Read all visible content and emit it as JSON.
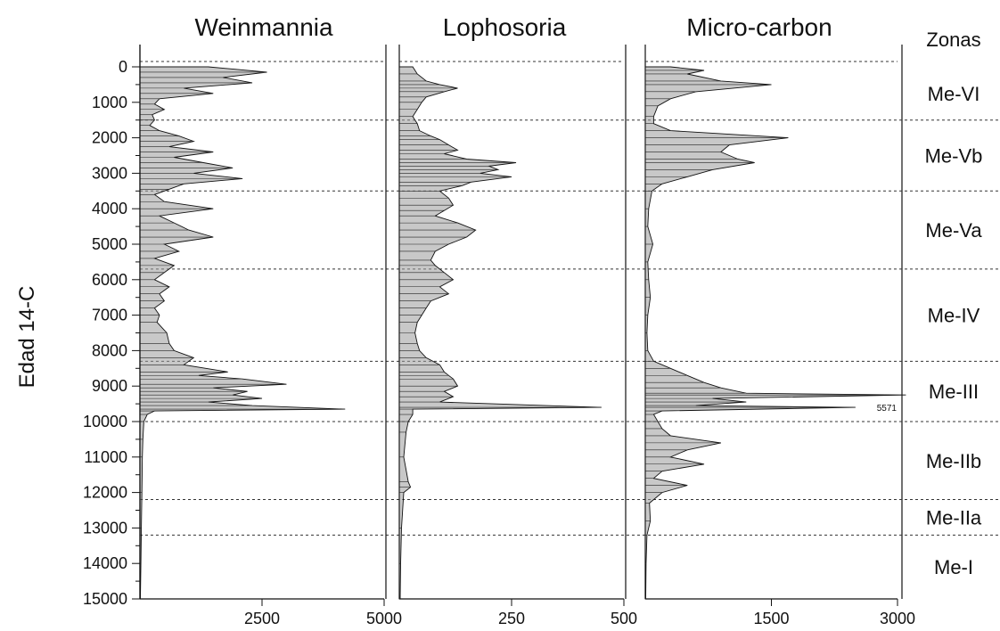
{
  "chart_data": {
    "type": "area",
    "ylabel": "Edad 14-C",
    "ylim": [
      0,
      15000
    ],
    "y_ticks": [
      0,
      1000,
      2000,
      3000,
      4000,
      5000,
      6000,
      7000,
      8000,
      9000,
      10000,
      11000,
      12000,
      13000,
      14000,
      15000
    ],
    "zones_header": "Zonas",
    "zones": [
      {
        "name": "Me-VI",
        "top": 0,
        "bottom": 1500
      },
      {
        "name": "Me-Vb",
        "top": 1500,
        "bottom": 3500
      },
      {
        "name": "Me-Va",
        "top": 3500,
        "bottom": 5700
      },
      {
        "name": "Me-IV",
        "top": 5700,
        "bottom": 8300
      },
      {
        "name": "Me-III",
        "top": 8300,
        "bottom": 10000
      },
      {
        "name": "Me-IIb",
        "top": 10000,
        "bottom": 12200
      },
      {
        "name": "Me-IIa",
        "top": 12200,
        "bottom": 13200
      },
      {
        "name": "Me-I",
        "top": 13200,
        "bottom": 15000
      }
    ],
    "panels": [
      {
        "name": "Weinmannia",
        "xlim": [
          0,
          5000
        ],
        "x_ticks": [
          2500,
          5000
        ],
        "series": [
          [
            0,
            1400
          ],
          [
            150,
            2600
          ],
          [
            300,
            1700
          ],
          [
            450,
            2300
          ],
          [
            600,
            900
          ],
          [
            750,
            1500
          ],
          [
            900,
            400
          ],
          [
            1050,
            300
          ],
          [
            1200,
            500
          ],
          [
            1350,
            250
          ],
          [
            1500,
            300
          ],
          [
            1650,
            200
          ],
          [
            1800,
            400
          ],
          [
            1950,
            800
          ],
          [
            2100,
            1100
          ],
          [
            2250,
            600
          ],
          [
            2400,
            1500
          ],
          [
            2550,
            700
          ],
          [
            2700,
            1300
          ],
          [
            2850,
            1900
          ],
          [
            3000,
            1100
          ],
          [
            3150,
            2100
          ],
          [
            3300,
            900
          ],
          [
            3450,
            600
          ],
          [
            3600,
            300
          ],
          [
            3800,
            500
          ],
          [
            4000,
            1500
          ],
          [
            4200,
            400
          ],
          [
            4400,
            700
          ],
          [
            4600,
            1000
          ],
          [
            4800,
            1500
          ],
          [
            5000,
            500
          ],
          [
            5200,
            800
          ],
          [
            5400,
            300
          ],
          [
            5600,
            700
          ],
          [
            5800,
            500
          ],
          [
            6000,
            300
          ],
          [
            6200,
            600
          ],
          [
            6400,
            400
          ],
          [
            6600,
            500
          ],
          [
            6800,
            300
          ],
          [
            7000,
            400
          ],
          [
            7200,
            350
          ],
          [
            7500,
            550
          ],
          [
            7800,
            600
          ],
          [
            8000,
            700
          ],
          [
            8200,
            1100
          ],
          [
            8400,
            900
          ],
          [
            8600,
            1800
          ],
          [
            8700,
            1200
          ],
          [
            8800,
            2100
          ],
          [
            8950,
            3000
          ],
          [
            9050,
            1500
          ],
          [
            9150,
            2200
          ],
          [
            9250,
            1900
          ],
          [
            9350,
            2500
          ],
          [
            9450,
            1400
          ],
          [
            9550,
            2300
          ],
          [
            9650,
            4200
          ],
          [
            9700,
            300
          ],
          [
            9800,
            150
          ],
          [
            10000,
            80
          ],
          [
            10500,
            60
          ],
          [
            11000,
            50
          ],
          [
            12000,
            40
          ],
          [
            13000,
            30
          ],
          [
            14000,
            20
          ],
          [
            15000,
            10
          ]
        ]
      },
      {
        "name": "Lophosoria",
        "xlim": [
          0,
          500
        ],
        "x_ticks": [
          250,
          500
        ],
        "series": [
          [
            0,
            30
          ],
          [
            200,
            40
          ],
          [
            400,
            60
          ],
          [
            500,
            90
          ],
          [
            600,
            130
          ],
          [
            700,
            100
          ],
          [
            850,
            60
          ],
          [
            1000,
            50
          ],
          [
            1200,
            40
          ],
          [
            1400,
            30
          ],
          [
            1600,
            40
          ],
          [
            1800,
            45
          ],
          [
            1950,
            70
          ],
          [
            2050,
            90
          ],
          [
            2200,
            110
          ],
          [
            2350,
            130
          ],
          [
            2450,
            100
          ],
          [
            2600,
            150
          ],
          [
            2700,
            260
          ],
          [
            2800,
            200
          ],
          [
            2900,
            220
          ],
          [
            3000,
            180
          ],
          [
            3100,
            250
          ],
          [
            3250,
            160
          ],
          [
            3350,
            140
          ],
          [
            3500,
            90
          ],
          [
            3700,
            110
          ],
          [
            3900,
            120
          ],
          [
            4050,
            100
          ],
          [
            4200,
            80
          ],
          [
            4400,
            130
          ],
          [
            4600,
            170
          ],
          [
            4800,
            150
          ],
          [
            5000,
            110
          ],
          [
            5200,
            80
          ],
          [
            5450,
            70
          ],
          [
            5600,
            80
          ],
          [
            5800,
            100
          ],
          [
            6000,
            120
          ],
          [
            6200,
            90
          ],
          [
            6400,
            110
          ],
          [
            6600,
            70
          ],
          [
            6800,
            60
          ],
          [
            7000,
            50
          ],
          [
            7200,
            40
          ],
          [
            7500,
            35
          ],
          [
            7800,
            40
          ],
          [
            8000,
            45
          ],
          [
            8200,
            60
          ],
          [
            8400,
            90
          ],
          [
            8600,
            100
          ],
          [
            8700,
            110
          ],
          [
            8800,
            120
          ],
          [
            9000,
            130
          ],
          [
            9150,
            100
          ],
          [
            9300,
            120
          ],
          [
            9450,
            90
          ],
          [
            9600,
            450
          ],
          [
            9650,
            30
          ],
          [
            9800,
            30
          ],
          [
            10000,
            20
          ],
          [
            10300,
            15
          ],
          [
            11000,
            10
          ],
          [
            11700,
            20
          ],
          [
            11850,
            25
          ],
          [
            12000,
            10
          ],
          [
            13000,
            5
          ],
          [
            14000,
            3
          ],
          [
            15000,
            2
          ]
        ]
      },
      {
        "name": "Micro-carbon",
        "xlim": [
          0,
          3000
        ],
        "x_ticks": [
          1500,
          3000
        ],
        "annotation": {
          "text": "5571",
          "y": 9600
        },
        "series": [
          [
            0,
            300
          ],
          [
            100,
            700
          ],
          [
            200,
            500
          ],
          [
            400,
            900
          ],
          [
            500,
            1500
          ],
          [
            700,
            600
          ],
          [
            900,
            300
          ],
          [
            1100,
            150
          ],
          [
            1400,
            100
          ],
          [
            1600,
            100
          ],
          [
            1800,
            300
          ],
          [
            2000,
            1700
          ],
          [
            2200,
            1000
          ],
          [
            2400,
            900
          ],
          [
            2600,
            1100
          ],
          [
            2700,
            1300
          ],
          [
            2900,
            800
          ],
          [
            3100,
            500
          ],
          [
            3300,
            200
          ],
          [
            3500,
            80
          ],
          [
            4000,
            40
          ],
          [
            4500,
            30
          ],
          [
            5000,
            90
          ],
          [
            5500,
            30
          ],
          [
            6000,
            40
          ],
          [
            6500,
            60
          ],
          [
            7000,
            30
          ],
          [
            7500,
            20
          ],
          [
            8000,
            30
          ],
          [
            8300,
            100
          ],
          [
            8500,
            300
          ],
          [
            8700,
            500
          ],
          [
            8900,
            700
          ],
          [
            9050,
            900
          ],
          [
            9200,
            1200
          ],
          [
            9250,
            3100
          ],
          [
            9350,
            800
          ],
          [
            9450,
            1200
          ],
          [
            9550,
            600
          ],
          [
            9600,
            2500
          ],
          [
            9700,
            200
          ],
          [
            9800,
            100
          ],
          [
            10000,
            150
          ],
          [
            10200,
            200
          ],
          [
            10400,
            300
          ],
          [
            10600,
            900
          ],
          [
            10800,
            500
          ],
          [
            11000,
            300
          ],
          [
            11200,
            700
          ],
          [
            11400,
            200
          ],
          [
            11600,
            100
          ],
          [
            11800,
            500
          ],
          [
            12000,
            200
          ],
          [
            12300,
            50
          ],
          [
            12800,
            60
          ],
          [
            13200,
            20
          ],
          [
            14000,
            10
          ],
          [
            15000,
            5
          ]
        ]
      }
    ]
  }
}
